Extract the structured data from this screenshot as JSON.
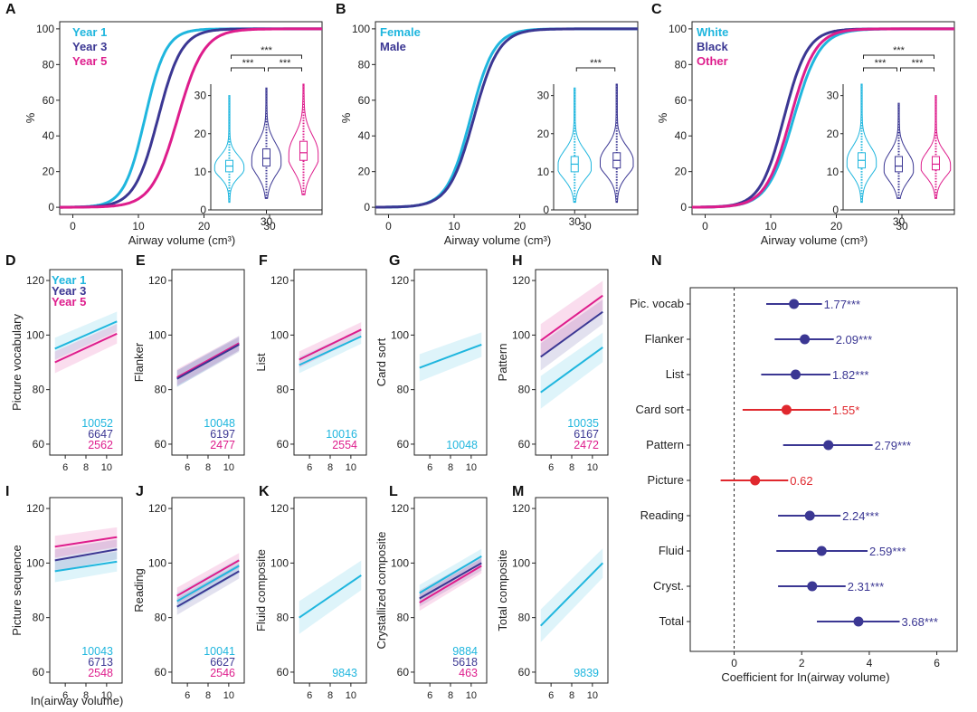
{
  "colors": {
    "year1": "#1fb6de",
    "year3": "#3b3793",
    "year5": "#de1d8c",
    "cyan": "#1fb6de",
    "navy": "#3b3793",
    "magenta": "#de1d8c",
    "red": "#e0282e",
    "axis": "#222222"
  },
  "chart_data": [
    {
      "id": "A",
      "type": "line",
      "panel_label": "A",
      "xlabel": "Airway volume (cm³)",
      "ylabel": "%",
      "xlim": [
        -2,
        38
      ],
      "ylim": [
        0,
        100
      ],
      "xticks": [
        0,
        10,
        20,
        30
      ],
      "yticks": [
        0,
        20,
        40,
        60,
        80,
        100
      ],
      "series": [
        {
          "name": "Year 1",
          "color": "cyan",
          "median": 11,
          "scale": 1.6
        },
        {
          "name": "Year 3",
          "color": "navy",
          "median": 13,
          "scale": 1.8
        },
        {
          "name": "Year 5",
          "color": "magenta",
          "median": 16,
          "scale": 2.0
        }
      ],
      "inset": {
        "type": "violin",
        "ylim": [
          0,
          33
        ],
        "yticks": [
          0,
          10,
          20,
          30
        ],
        "xtick_label": "30",
        "groups": [
          {
            "color": "cyan",
            "median": 11.5,
            "q1": 10,
            "q3": 13,
            "min": 2,
            "max": 30
          },
          {
            "color": "navy",
            "median": 13.5,
            "q1": 11.5,
            "q3": 16,
            "min": 3,
            "max": 32
          },
          {
            "color": "magenta",
            "median": 15,
            "q1": 13,
            "q3": 18,
            "min": 4,
            "max": 33
          }
        ],
        "brackets": [
          {
            "from": 0,
            "to": 1,
            "label": "***",
            "level": 1
          },
          {
            "from": 1,
            "to": 2,
            "label": "***",
            "level": 1
          },
          {
            "from": 0,
            "to": 2,
            "label": "***",
            "level": 2
          }
        ]
      }
    },
    {
      "id": "B",
      "type": "line",
      "panel_label": "B",
      "xlabel": "Airway volume (cm³)",
      "ylabel": "%",
      "xlim": [
        -2,
        38
      ],
      "ylim": [
        0,
        100
      ],
      "xticks": [
        0,
        10,
        20,
        30
      ],
      "yticks": [
        0,
        20,
        40,
        60,
        80,
        100
      ],
      "series": [
        {
          "name": "Female",
          "color": "cyan",
          "median": 12.5,
          "scale": 1.8
        },
        {
          "name": "Male",
          "color": "navy",
          "median": 13,
          "scale": 1.9
        }
      ],
      "inset": {
        "type": "violin",
        "ylim": [
          0,
          33
        ],
        "yticks": [
          0,
          10,
          20,
          30
        ],
        "xtick_label": "30",
        "groups": [
          {
            "color": "cyan",
            "median": 12,
            "q1": 10,
            "q3": 14,
            "min": 2,
            "max": 32
          },
          {
            "color": "navy",
            "median": 13,
            "q1": 11,
            "q3": 15,
            "min": 2,
            "max": 33
          }
        ],
        "brackets": [
          {
            "from": 0,
            "to": 1,
            "label": "***",
            "level": 1
          }
        ]
      }
    },
    {
      "id": "C",
      "type": "line",
      "panel_label": "C",
      "xlabel": "Airway volume (cm³)",
      "ylabel": "%",
      "xlim": [
        -2,
        38
      ],
      "ylim": [
        0,
        100
      ],
      "xticks": [
        0,
        10,
        20,
        30
      ],
      "yticks": [
        0,
        20,
        40,
        60,
        80,
        100
      ],
      "series": [
        {
          "name": "White",
          "color": "cyan",
          "median": 13.5,
          "scale": 2.0
        },
        {
          "name": "Black",
          "color": "navy",
          "median": 12,
          "scale": 1.8
        },
        {
          "name": "Other",
          "color": "magenta",
          "median": 13,
          "scale": 1.9
        }
      ],
      "inset": {
        "type": "violin",
        "ylim": [
          0,
          33
        ],
        "yticks": [
          0,
          10,
          20,
          30
        ],
        "xtick_label": "30",
        "groups": [
          {
            "color": "cyan",
            "median": 13,
            "q1": 11,
            "q3": 15,
            "min": 2,
            "max": 33
          },
          {
            "color": "navy",
            "median": 11.5,
            "q1": 10,
            "q3": 14,
            "min": 3,
            "max": 28
          },
          {
            "color": "magenta",
            "median": 12,
            "q1": 10.5,
            "q3": 14,
            "min": 3,
            "max": 30
          }
        ],
        "brackets": [
          {
            "from": 0,
            "to": 1,
            "label": "***",
            "level": 1
          },
          {
            "from": 1,
            "to": 2,
            "label": "***",
            "level": 1
          },
          {
            "from": 0,
            "to": 2,
            "label": "***",
            "level": 2
          }
        ]
      }
    },
    {
      "id": "D",
      "type": "line",
      "panel_label": "D",
      "ylabel": "Picture vocabulary",
      "xlim": [
        4.5,
        11.5
      ],
      "ylim": [
        56,
        124
      ],
      "xticks": [
        6,
        8,
        10
      ],
      "yticks": [
        60,
        80,
        100,
        120
      ],
      "legend": [
        "Year 1",
        "Year 3",
        "Year 5"
      ],
      "series": [
        {
          "color": "cyan",
          "x": [
            5,
            11
          ],
          "y": [
            95,
            105
          ],
          "band": 4
        },
        {
          "color": "magenta",
          "x": [
            5,
            11
          ],
          "y": [
            90,
            100.5
          ],
          "band": 4
        }
      ],
      "counts": [
        {
          "text": "10052",
          "color": "cyan"
        },
        {
          "text": "6647",
          "color": "navy"
        },
        {
          "text": "2562",
          "color": "magenta"
        }
      ]
    },
    {
      "id": "E",
      "type": "line",
      "panel_label": "E",
      "ylabel": "Flanker",
      "xlim": [
        4.5,
        11.5
      ],
      "ylim": [
        56,
        124
      ],
      "xticks": [
        6,
        8,
        10
      ],
      "yticks": [
        60,
        80,
        100,
        120
      ],
      "series": [
        {
          "color": "cyan",
          "x": [
            5,
            11
          ],
          "y": [
            84,
            97
          ],
          "band": 3
        },
        {
          "color": "magenta",
          "x": [
            5,
            11
          ],
          "y": [
            84.5,
            97
          ],
          "band": 3
        },
        {
          "color": "navy",
          "x": [
            5,
            11
          ],
          "y": [
            84,
            96.5
          ],
          "band": 3
        }
      ],
      "counts": [
        {
          "text": "10048",
          "color": "cyan"
        },
        {
          "text": "6197",
          "color": "navy"
        },
        {
          "text": "2477",
          "color": "magenta"
        }
      ]
    },
    {
      "id": "F",
      "type": "line",
      "panel_label": "F",
      "ylabel": "List",
      "xlim": [
        4.5,
        11.5
      ],
      "ylim": [
        56,
        124
      ],
      "xticks": [
        6,
        8,
        10
      ],
      "yticks": [
        60,
        80,
        100,
        120
      ],
      "series": [
        {
          "color": "cyan",
          "x": [
            5,
            11
          ],
          "y": [
            89,
            99.5
          ],
          "band": 3
        },
        {
          "color": "magenta",
          "x": [
            5,
            11
          ],
          "y": [
            91,
            102
          ],
          "band": 3
        }
      ],
      "counts": [
        {
          "text": "10016",
          "color": "cyan"
        },
        {
          "text": "2554",
          "color": "magenta"
        }
      ]
    },
    {
      "id": "G",
      "type": "line",
      "panel_label": "G",
      "ylabel": "Card sort",
      "xlim": [
        4.5,
        11.5
      ],
      "ylim": [
        56,
        124
      ],
      "xticks": [
        6,
        8,
        10
      ],
      "yticks": [
        60,
        80,
        100,
        120
      ],
      "series": [
        {
          "color": "cyan",
          "x": [
            5,
            11
          ],
          "y": [
            88,
            96.5
          ],
          "band": 5
        }
      ],
      "counts": [
        {
          "text": "10048",
          "color": "cyan"
        }
      ]
    },
    {
      "id": "H",
      "type": "line",
      "panel_label": "H",
      "ylabel": "Pattern",
      "xlim": [
        4.5,
        11.5
      ],
      "ylim": [
        56,
        124
      ],
      "xticks": [
        6,
        8,
        10
      ],
      "yticks": [
        60,
        80,
        100,
        120
      ],
      "series": [
        {
          "color": "cyan",
          "x": [
            5,
            11
          ],
          "y": [
            79,
            95.5
          ],
          "band": 6
        },
        {
          "color": "navy",
          "x": [
            5,
            11
          ],
          "y": [
            92,
            108.5
          ],
          "band": 5
        },
        {
          "color": "magenta",
          "x": [
            5,
            11
          ],
          "y": [
            98,
            114.5
          ],
          "band": 6
        }
      ],
      "counts": [
        {
          "text": "10035",
          "color": "cyan"
        },
        {
          "text": "6167",
          "color": "navy"
        },
        {
          "text": "2472",
          "color": "magenta"
        }
      ]
    },
    {
      "id": "I",
      "type": "line",
      "panel_label": "I",
      "ylabel": "Picture sequence",
      "xlabel": "In(airway volume)",
      "xlim": [
        4.5,
        11.5
      ],
      "ylim": [
        56,
        124
      ],
      "xticks": [
        6,
        8,
        10
      ],
      "yticks": [
        60,
        80,
        100,
        120
      ],
      "series": [
        {
          "color": "cyan",
          "x": [
            5,
            11
          ],
          "y": [
            97,
            100.5
          ],
          "band": 4
        },
        {
          "color": "navy",
          "x": [
            5,
            11
          ],
          "y": [
            101,
            105
          ],
          "band": 4
        },
        {
          "color": "magenta",
          "x": [
            5,
            11
          ],
          "y": [
            106,
            109.5
          ],
          "band": 4
        }
      ],
      "counts": [
        {
          "text": "10043",
          "color": "cyan"
        },
        {
          "text": "6713",
          "color": "navy"
        },
        {
          "text": "2548",
          "color": "magenta"
        }
      ]
    },
    {
      "id": "J",
      "type": "line",
      "panel_label": "J",
      "ylabel": "Reading",
      "xlim": [
        4.5,
        11.5
      ],
      "ylim": [
        56,
        124
      ],
      "xticks": [
        6,
        8,
        10
      ],
      "yticks": [
        60,
        80,
        100,
        120
      ],
      "series": [
        {
          "color": "magenta",
          "x": [
            5,
            11
          ],
          "y": [
            88,
            101
          ],
          "band": 3
        },
        {
          "color": "cyan",
          "x": [
            5,
            11
          ],
          "y": [
            86,
            99
          ],
          "band": 3
        },
        {
          "color": "navy",
          "x": [
            5,
            11
          ],
          "y": [
            84,
            97
          ],
          "band": 3
        }
      ],
      "counts": [
        {
          "text": "10041",
          "color": "cyan"
        },
        {
          "text": "6627",
          "color": "navy"
        },
        {
          "text": "2546",
          "color": "magenta"
        }
      ]
    },
    {
      "id": "K",
      "type": "line",
      "panel_label": "K",
      "ylabel": "Fluid composite",
      "xlim": [
        4.5,
        11.5
      ],
      "ylim": [
        56,
        124
      ],
      "xticks": [
        6,
        8,
        10
      ],
      "yticks": [
        60,
        80,
        100,
        120
      ],
      "series": [
        {
          "color": "cyan",
          "x": [
            5,
            11
          ],
          "y": [
            80,
            95.5
          ],
          "band": 6
        }
      ],
      "counts": [
        {
          "text": "9843",
          "color": "cyan"
        }
      ]
    },
    {
      "id": "L",
      "type": "line",
      "panel_label": "L",
      "ylabel": "Crystallized composite",
      "xlim": [
        4.5,
        11.5
      ],
      "ylim": [
        56,
        124
      ],
      "xticks": [
        6,
        8,
        10
      ],
      "yticks": [
        60,
        80,
        100,
        120
      ],
      "series": [
        {
          "color": "cyan",
          "x": [
            5,
            11
          ],
          "y": [
            89,
            102.5
          ],
          "band": 3
        },
        {
          "color": "navy",
          "x": [
            5,
            11
          ],
          "y": [
            87,
            100
          ],
          "band": 3
        },
        {
          "color": "magenta",
          "x": [
            5,
            11
          ],
          "y": [
            85.5,
            99
          ],
          "band": 3
        }
      ],
      "counts": [
        {
          "text": "9884",
          "color": "cyan"
        },
        {
          "text": "5618",
          "color": "navy"
        },
        {
          "text": "463",
          "color": "magenta"
        }
      ]
    },
    {
      "id": "M",
      "type": "line",
      "panel_label": "M",
      "ylabel": "Total composite",
      "xlim": [
        4.5,
        11.5
      ],
      "ylim": [
        56,
        124
      ],
      "xticks": [
        6,
        8,
        10
      ],
      "yticks": [
        60,
        80,
        100,
        120
      ],
      "series": [
        {
          "color": "cyan",
          "x": [
            5,
            11
          ],
          "y": [
            77,
            100
          ],
          "band": 6
        }
      ],
      "counts": [
        {
          "text": "9839",
          "color": "cyan"
        }
      ]
    },
    {
      "id": "N",
      "type": "forest",
      "panel_label": "N",
      "xlabel": "Coefficient for In(airway volume)",
      "xlim": [
        -1.3,
        6.6
      ],
      "xticks": [
        0,
        2,
        4,
        6
      ],
      "rows": [
        {
          "label": "Pic. vocab",
          "est": 1.77,
          "lo": 0.95,
          "hi": 2.6,
          "text": "1.77***",
          "color": "navy"
        },
        {
          "label": "Flanker",
          "est": 2.09,
          "lo": 1.2,
          "hi": 2.95,
          "text": "2.09***",
          "color": "navy"
        },
        {
          "label": "List",
          "est": 1.82,
          "lo": 0.8,
          "hi": 2.85,
          "text": "1.82***",
          "color": "navy"
        },
        {
          "label": "Card sort",
          "est": 1.55,
          "lo": 0.25,
          "hi": 2.85,
          "text": "1.55*",
          "color": "red"
        },
        {
          "label": "Pattern",
          "est": 2.79,
          "lo": 1.45,
          "hi": 4.1,
          "text": "2.79***",
          "color": "navy"
        },
        {
          "label": "Picture",
          "est": 0.62,
          "lo": -0.4,
          "hi": 1.6,
          "text": "0.62",
          "color": "red"
        },
        {
          "label": "Reading",
          "est": 2.24,
          "lo": 1.3,
          "hi": 3.15,
          "text": "2.24***",
          "color": "navy"
        },
        {
          "label": "Fluid",
          "est": 2.59,
          "lo": 1.25,
          "hi": 3.95,
          "text": "2.59***",
          "color": "navy"
        },
        {
          "label": "Cryst.",
          "est": 2.31,
          "lo": 1.3,
          "hi": 3.3,
          "text": "2.31***",
          "color": "navy"
        },
        {
          "label": "Total",
          "est": 3.68,
          "lo": 2.45,
          "hi": 4.9,
          "text": "3.68***",
          "color": "navy"
        }
      ]
    }
  ]
}
